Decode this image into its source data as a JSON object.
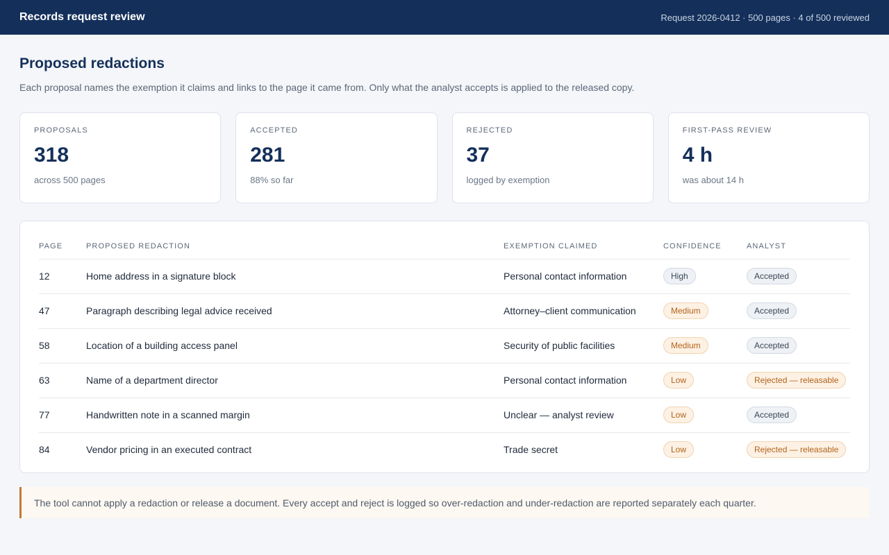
{
  "header": {
    "title": "Records request review",
    "request_meta": "Request 2026-0412 · 500 pages · 4 of 500 reviewed"
  },
  "page": {
    "title": "Proposed redactions",
    "subtitle": "Each proposal names the exemption it claims and links to the page it came from. Only what the analyst accepts is applied to the released copy."
  },
  "stats": [
    {
      "label": "PROPOSALS",
      "value": "318",
      "note": "across 500 pages"
    },
    {
      "label": "ACCEPTED",
      "value": "281",
      "note": "88% so far"
    },
    {
      "label": "REJECTED",
      "value": "37",
      "note": "logged by exemption"
    },
    {
      "label": "FIRST-PASS REVIEW",
      "value": "4 h",
      "note": "was about 14 h"
    }
  ],
  "table": {
    "headers": {
      "page": "PAGE",
      "redaction": "PROPOSED REDACTION",
      "exemption": "EXEMPTION CLAIMED",
      "confidence": "CONFIDENCE",
      "analyst": "ANALYST"
    },
    "rows": [
      {
        "page": "12",
        "redaction": "Home address in a signature block",
        "exemption": "Personal contact information",
        "confidence": "High",
        "analyst": "Accepted"
      },
      {
        "page": "47",
        "redaction": "Paragraph describing legal advice received",
        "exemption": "Attorney–client communication",
        "confidence": "Medium",
        "analyst": "Accepted"
      },
      {
        "page": "58",
        "redaction": "Location of a building access panel",
        "exemption": "Security of public facilities",
        "confidence": "Medium",
        "analyst": "Accepted"
      },
      {
        "page": "63",
        "redaction": "Name of a department director",
        "exemption": "Personal contact information",
        "confidence": "Low",
        "analyst": "Rejected — releasable"
      },
      {
        "page": "77",
        "redaction": "Handwritten note in a scanned margin",
        "exemption": "Unclear — analyst review",
        "confidence": "Low",
        "analyst": "Accepted"
      },
      {
        "page": "84",
        "redaction": "Vendor pricing in an executed contract",
        "exemption": "Trade secret",
        "confidence": "Low",
        "analyst": "Rejected — releasable"
      }
    ]
  },
  "footer": {
    "note": "The tool cannot apply a redaction or release a document. Every accept and reject is logged so over-redaction and under-redaction are reported separately each quarter."
  }
}
